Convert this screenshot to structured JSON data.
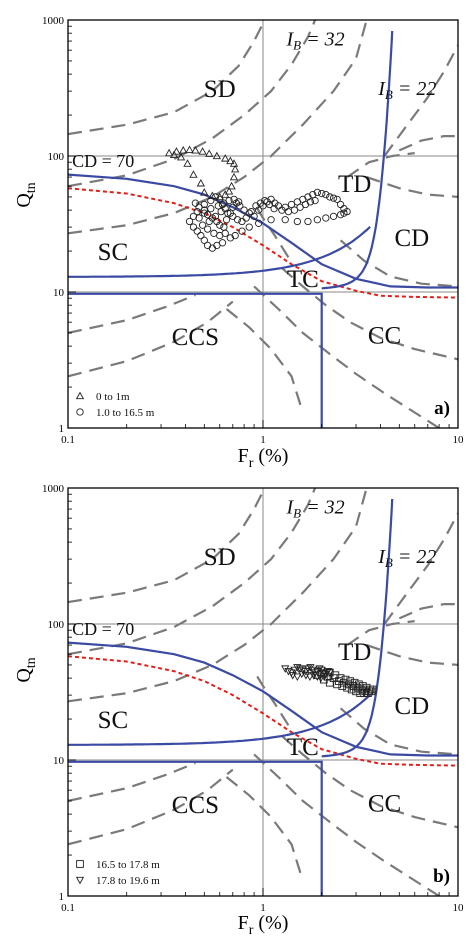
{
  "chart_data": [
    {
      "type": "scatter",
      "panel_label": "a)",
      "xlabel_main": "F",
      "xlabel_sub": "r",
      "xlabel_unit": " (%)",
      "ylabel_main": "Q",
      "ylabel_sub": "tn",
      "x_scale": "log",
      "y_scale": "log",
      "xlim": [
        0.1,
        10
      ],
      "ylim": [
        1,
        1000
      ],
      "x_ticks": [
        "0.1",
        "1",
        "10"
      ],
      "y_ticks": [
        "1",
        "10",
        "100",
        "1000"
      ],
      "grid": "decade lines at x=1, y=10, y=100",
      "zone_labels": [
        "SD",
        "TD",
        "CD",
        "SC",
        "TC",
        "CCS",
        "CC"
      ],
      "annotations": {
        "cd70": "CD = 70",
        "ib32_main": "I",
        "ib32_sub": "B",
        "ib32_rest": " = 32",
        "ib22_main": "I",
        "ib22_sub": "B",
        "ib22_rest": " = 22"
      },
      "legend_position": "bottom-left",
      "series": [
        {
          "name": "0 to 1m",
          "marker": "triangle-up",
          "points": [
            [
              0.33,
              105
            ],
            [
              0.36,
              108
            ],
            [
              0.39,
              110
            ],
            [
              0.42,
              111
            ],
            [
              0.45,
              110
            ],
            [
              0.49,
              108
            ],
            [
              0.53,
              104
            ],
            [
              0.58,
              100
            ],
            [
              0.64,
              96
            ],
            [
              0.68,
              92
            ],
            [
              0.71,
              88
            ],
            [
              0.72,
              80
            ],
            [
              0.71,
              70
            ],
            [
              0.69,
              60
            ],
            [
              0.67,
              55
            ],
            [
              0.64,
              52
            ],
            [
              0.6,
              50
            ],
            [
              0.55,
              51
            ],
            [
              0.5,
              54
            ],
            [
              0.48,
              63
            ],
            [
              0.44,
              73
            ],
            [
              0.41,
              88
            ],
            [
              0.38,
              98
            ],
            [
              0.35,
              102
            ]
          ]
        },
        {
          "name": "1.0 to 16.5 m",
          "marker": "circle",
          "points": [
            [
              0.45,
              45
            ],
            [
              0.47,
              42
            ],
            [
              0.5,
              40
            ],
            [
              0.52,
              37
            ],
            [
              0.55,
              35
            ],
            [
              0.58,
              33
            ],
            [
              0.6,
              31
            ],
            [
              0.63,
              30
            ],
            [
              0.65,
              34
            ],
            [
              0.68,
              38
            ],
            [
              0.7,
              42
            ],
            [
              0.73,
              45
            ],
            [
              0.76,
              43
            ],
            [
              0.8,
              40
            ],
            [
              0.85,
              38
            ],
            [
              0.9,
              36
            ],
            [
              0.95,
              40
            ],
            [
              1.0,
              43
            ],
            [
              1.05,
              46
            ],
            [
              1.1,
              48
            ],
            [
              1.15,
              45
            ],
            [
              1.2,
              43
            ],
            [
              1.3,
              42
            ],
            [
              1.4,
              44
            ],
            [
              1.5,
              46
            ],
            [
              1.6,
              48
            ],
            [
              1.7,
              50
            ],
            [
              1.8,
              52
            ],
            [
              1.9,
              54
            ],
            [
              2.0,
              53
            ],
            [
              2.1,
              52
            ],
            [
              2.2,
              50
            ],
            [
              2.3,
              49
            ],
            [
              2.4,
              48
            ],
            [
              2.5,
              44
            ],
            [
              2.6,
              41
            ],
            [
              2.7,
              39
            ],
            [
              2.6,
              38
            ],
            [
              2.5,
              37
            ],
            [
              2.3,
              36
            ],
            [
              2.1,
              35
            ],
            [
              1.9,
              34
            ],
            [
              1.7,
              33
            ],
            [
              1.5,
              33
            ],
            [
              1.3,
              34
            ],
            [
              1.1,
              34
            ],
            [
              0.95,
              32
            ],
            [
              0.85,
              30
            ],
            [
              0.78,
              28
            ],
            [
              0.72,
              26
            ],
            [
              0.68,
              25
            ],
            [
              0.62,
              23
            ],
            [
              0.58,
              22
            ],
            [
              0.55,
              21
            ],
            [
              0.52,
              22
            ],
            [
              0.5,
              24
            ],
            [
              0.48,
              26
            ],
            [
              0.46,
              28
            ],
            [
              0.44,
              30
            ],
            [
              0.42,
              33
            ],
            [
              0.44,
              36
            ],
            [
              0.46,
              39
            ],
            [
              0.5,
              44
            ],
            [
              0.54,
              47
            ],
            [
              0.57,
              50
            ],
            [
              0.6,
              48
            ],
            [
              0.62,
              44
            ],
            [
              0.64,
              41
            ],
            [
              0.66,
              38
            ],
            [
              0.7,
              36
            ],
            [
              0.74,
              34
            ],
            [
              0.78,
              33
            ],
            [
              0.82,
              35
            ],
            [
              0.87,
              39
            ],
            [
              0.92,
              43
            ],
            [
              0.97,
              45
            ],
            [
              1.02,
              47
            ],
            [
              1.08,
              44
            ],
            [
              1.14,
              41
            ],
            [
              1.25,
              40
            ],
            [
              1.35,
              39
            ],
            [
              1.45,
              40
            ],
            [
              1.55,
              42
            ],
            [
              1.65,
              44
            ],
            [
              1.75,
              46
            ],
            [
              1.85,
              47
            ],
            [
              0.52,
              29
            ],
            [
              0.56,
              27
            ],
            [
              0.6,
              26
            ],
            [
              0.64,
              27
            ],
            [
              0.49,
              31
            ],
            [
              0.53,
              33
            ],
            [
              0.57,
              36
            ],
            [
              0.61,
              39
            ],
            [
              0.47,
              35
            ],
            [
              0.5,
              38
            ],
            [
              0.54,
              41
            ],
            [
              0.59,
              43
            ],
            [
              0.63,
              45
            ],
            [
              0.67,
              47
            ],
            [
              0.71,
              48
            ],
            [
              0.75,
              46
            ]
          ]
        }
      ]
    },
    {
      "type": "scatter",
      "panel_label": "b)",
      "xlabel_main": "F",
      "xlabel_sub": "r",
      "xlabel_unit": " (%)",
      "ylabel_main": "Q",
      "ylabel_sub": "tn",
      "x_scale": "log",
      "y_scale": "log",
      "xlim": [
        0.1,
        10
      ],
      "ylim": [
        1,
        1000
      ],
      "x_ticks": [
        "0.1",
        "1",
        "10"
      ],
      "y_ticks": [
        "1",
        "10",
        "100",
        "1000"
      ],
      "grid": "decade lines at x=1, y=10, y=100",
      "zone_labels": [
        "SD",
        "TD",
        "CD",
        "SC",
        "TC",
        "CCS",
        "CC"
      ],
      "annotations": {
        "cd70": "CD = 70",
        "ib32_main": "I",
        "ib32_sub": "B",
        "ib32_rest": " = 32",
        "ib22_main": "I",
        "ib22_sub": "B",
        "ib22_rest": " = 22"
      },
      "legend_position": "bottom-left",
      "series": [
        {
          "name": "16.5 to 17.8 m",
          "marker": "square",
          "points": [
            [
              2.2,
              44
            ],
            [
              2.35,
              42
            ],
            [
              2.5,
              40
            ],
            [
              2.65,
              39
            ],
            [
              2.8,
              38
            ],
            [
              2.95,
              37
            ],
            [
              3.1,
              36
            ],
            [
              3.25,
              35
            ],
            [
              3.4,
              34
            ],
            [
              3.55,
              33
            ],
            [
              2.6,
              37
            ],
            [
              2.75,
              36
            ],
            [
              2.9,
              35
            ],
            [
              3.05,
              34
            ],
            [
              3.2,
              33
            ],
            [
              3.35,
              32
            ],
            [
              3.5,
              32
            ],
            [
              3.65,
              33
            ],
            [
              2.45,
              38
            ],
            [
              2.3,
              40
            ],
            [
              2.15,
              41
            ],
            [
              2.0,
              43
            ],
            [
              1.9,
              42
            ],
            [
              2.05,
              39
            ],
            [
              2.2,
              37
            ],
            [
              2.4,
              36
            ],
            [
              2.55,
              35
            ],
            [
              2.7,
              34
            ],
            [
              2.85,
              33
            ],
            [
              3.0,
              32
            ],
            [
              3.15,
              31
            ],
            [
              3.3,
              31
            ],
            [
              3.45,
              31
            ],
            [
              3.6,
              32
            ]
          ]
        },
        {
          "name": "17.8 to 19.6 m",
          "marker": "triangle-down",
          "points": [
            [
              1.3,
              47
            ],
            [
              1.35,
              45
            ],
            [
              1.4,
              44
            ],
            [
              1.45,
              46
            ],
            [
              1.5,
              48
            ],
            [
              1.55,
              47
            ],
            [
              1.6,
              46
            ],
            [
              1.65,
              45
            ],
            [
              1.7,
              47
            ],
            [
              1.75,
              48
            ],
            [
              1.8,
              46
            ],
            [
              1.85,
              44
            ],
            [
              1.9,
              45
            ],
            [
              1.95,
              47
            ],
            [
              2.0,
              46
            ],
            [
              2.05,
              44
            ],
            [
              2.1,
              43
            ],
            [
              2.15,
              45
            ],
            [
              2.2,
              44
            ],
            [
              1.42,
              42
            ],
            [
              1.5,
              41
            ],
            [
              1.58,
              43
            ],
            [
              1.66,
              42
            ],
            [
              1.74,
              41
            ],
            [
              1.82,
              42
            ],
            [
              1.9,
              41
            ],
            [
              1.98,
              40
            ],
            [
              2.06,
              41
            ]
          ]
        }
      ]
    }
  ]
}
